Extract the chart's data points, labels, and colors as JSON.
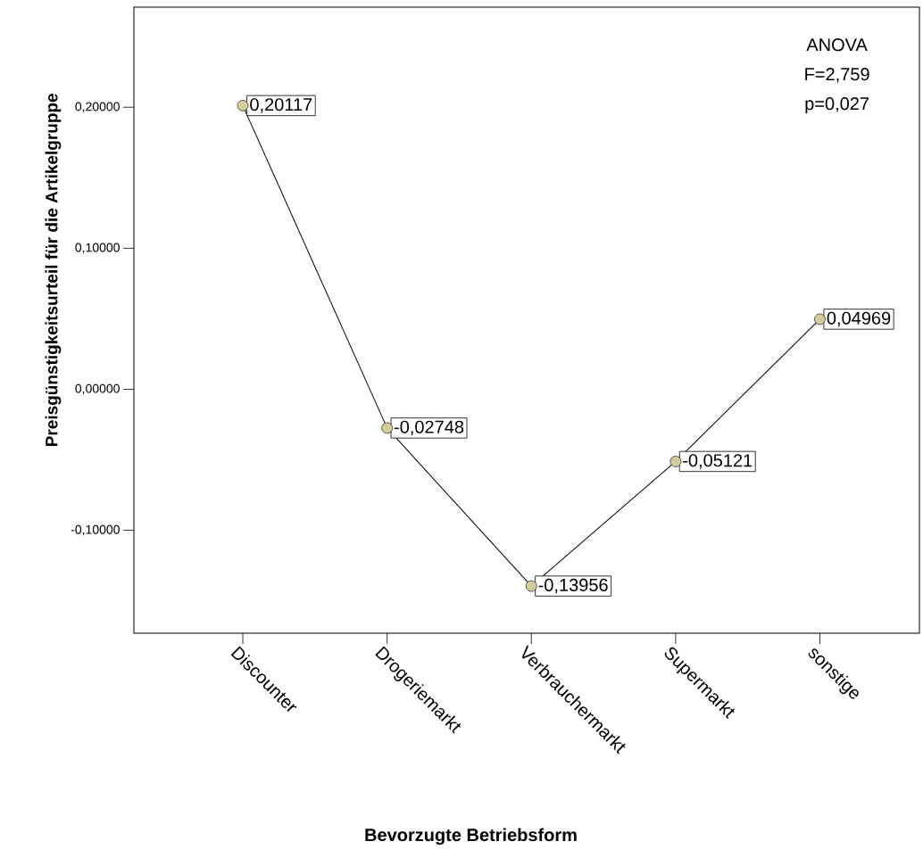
{
  "chart_data": {
    "type": "line",
    "xlabel": "Bevorzugte Betriebsform",
    "ylabel": "Preisgünstigkeitsurteil für die Artikelgruppe",
    "categories": [
      "Discounter",
      "Drogeriemarkt",
      "Verbrauchermarkt",
      "Supermarkt",
      "sonstige"
    ],
    "series": [
      {
        "color": "#000000",
        "values": [
          0.20117,
          -0.02748,
          -0.13956,
          -0.05121,
          0.04969
        ],
        "value_labels": [
          "0,20117",
          "-0,02748",
          "-0,13956",
          "-0,05121",
          "0,04969"
        ]
      }
    ],
    "ylim": [
      -0.173,
      0.271
    ],
    "yticks": [
      {
        "value": -0.1,
        "label": "-0,10000"
      },
      {
        "value": 0,
        "label": "0,00000"
      },
      {
        "value": 0.1,
        "label": "0,10000"
      },
      {
        "value": 0.2,
        "label": "0,20000"
      }
    ],
    "annotations": [
      "ANOVA",
      "F=2,759",
      "p=0,027"
    ],
    "marker": "circle",
    "line_style": "solid"
  }
}
